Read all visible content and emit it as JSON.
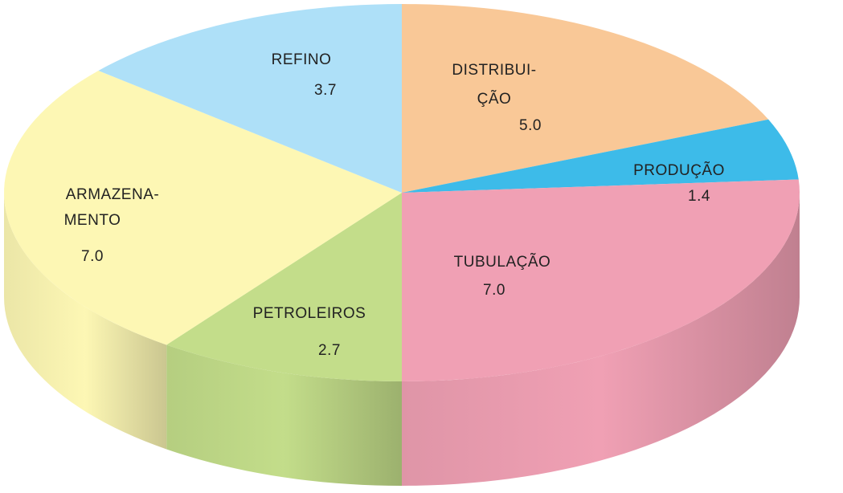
{
  "chart_data": {
    "type": "pie",
    "categories": [
      [
        "DISTRIBUI-",
        "ÇÃO"
      ],
      [
        "PRODUÇÃO"
      ],
      [
        "TUBULAÇÃO"
      ],
      [
        "PETROLEIROS"
      ],
      [
        "ARMAZENA-",
        "MENTO"
      ],
      [
        "REFINO"
      ]
    ],
    "values": [
      5.0,
      1.4,
      7.0,
      2.7,
      7.0,
      3.7
    ],
    "value_labels": [
      "5.0",
      "1.4",
      "7.0",
      "2.7",
      "7.0",
      "3.7"
    ],
    "colors": [
      "#f9c897",
      "#3dbbe9",
      "#f0a0b4",
      "#c3dd8a",
      "#fdf7b4",
      "#aee0f8"
    ]
  }
}
